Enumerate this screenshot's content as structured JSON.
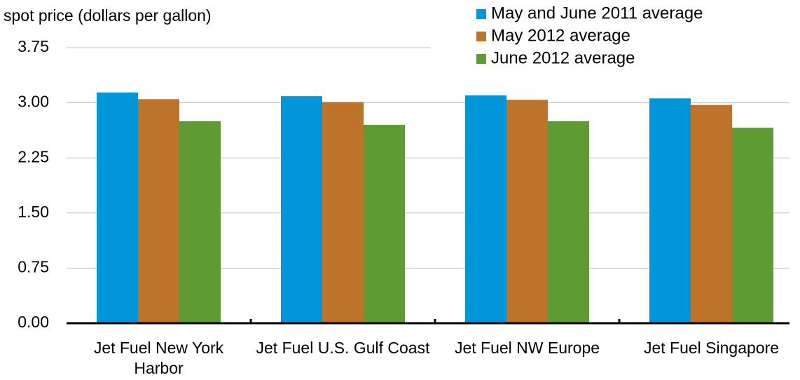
{
  "chart_data": {
    "type": "bar",
    "y_label": "spot price (dollars per gallon)",
    "categories": [
      "Jet Fuel New York Harbor",
      "Jet Fuel U.S. Gulf Coast",
      "Jet Fuel NW Europe",
      "Jet Fuel Singapore"
    ],
    "series": [
      {
        "name": "May and June 2011 average",
        "color": "#0096d7",
        "values": [
          3.14,
          3.09,
          3.1,
          3.06
        ]
      },
      {
        "name": "May 2012 average",
        "color": "#bd732a",
        "values": [
          3.05,
          3.01,
          3.04,
          2.97
        ]
      },
      {
        "name": "June 2012 average",
        "color": "#5f9b33",
        "values": [
          2.75,
          2.7,
          2.75,
          2.66
        ]
      }
    ],
    "ylim": [
      0,
      3.75
    ],
    "yticks": [
      {
        "value": 0,
        "label": "0.00"
      },
      {
        "value": 0.75,
        "label": "0.75"
      },
      {
        "value": 1.5,
        "label": "1.50"
      },
      {
        "value": 2.25,
        "label": "2.25"
      },
      {
        "value": 3,
        "label": "3.00"
      },
      {
        "value": 3.75,
        "label": "3.75"
      }
    ],
    "grid": true,
    "legend": "top-right"
  }
}
